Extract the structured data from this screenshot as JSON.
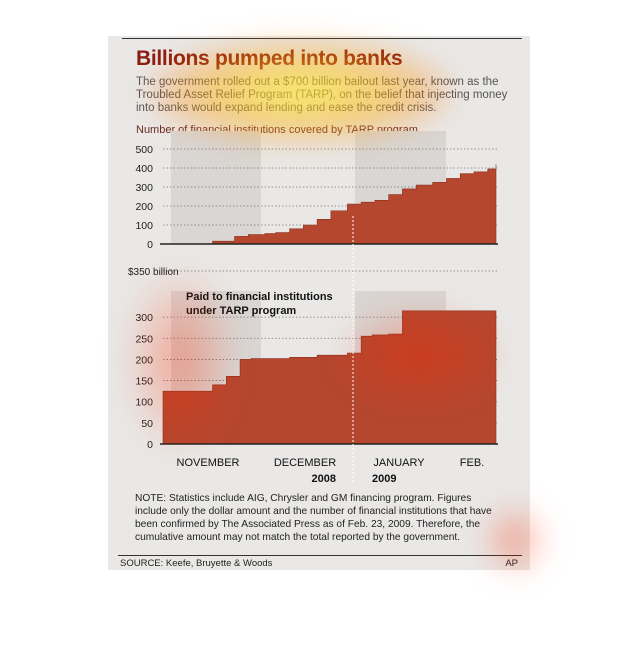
{
  "header": {
    "title": "Billions pumped into banks",
    "intro": "The government rolled out a $700 billion bailout last year, known as the Troubled Asset Relief Program (TARP), on the belief that injecting money into banks would expand lending and ease the credit crisis."
  },
  "footer": {
    "note": "NOTE: Statistics include AIG, Chrysler and GM financing program. Figures include only the dollar amount and the number of financial institutions that have been confirmed by The Associated Press as of Feb. 23, 2009. Therefore, the cumulative amount may not match the total reported by the government.",
    "source": "SOURCE: Keefe, Bruyette & Woods",
    "credit": "AP"
  },
  "colors": {
    "area": "#b5472f",
    "title": "#8a1c12",
    "band": "#d9d6d3",
    "background": "#e9e8e6"
  },
  "months": [
    "NOVEMBER",
    "DECEMBER",
    "JANUARY",
    "FEB."
  ],
  "years": [
    "2008",
    "2009"
  ],
  "chart_data": [
    {
      "type": "area",
      "title": "Number of financial institutions covered by TARP program",
      "ylim": [
        0,
        500
      ],
      "yticks": [
        0,
        100,
        200,
        300,
        400,
        500
      ],
      "x": [
        "Oct 25",
        "Nov 5",
        "Nov 12",
        "Nov 20",
        "Nov 25",
        "Dec 1",
        "Dec 5",
        "Dec 10",
        "Dec 15",
        "Dec 20",
        "Dec 25",
        "Dec 31",
        "Jan 5",
        "Jan 10",
        "Jan 15",
        "Jan 20",
        "Jan 25",
        "Jan 31",
        "Feb 5",
        "Feb 10",
        "Feb 15",
        "Feb 20",
        "Feb 23"
      ],
      "values": [
        0,
        0,
        15,
        40,
        50,
        55,
        60,
        80,
        100,
        130,
        175,
        210,
        220,
        230,
        260,
        290,
        310,
        325,
        345,
        370,
        380,
        395,
        420
      ],
      "grid": true
    },
    {
      "type": "area",
      "title": "Paid to financial institutions under TARP program",
      "ylabel_top": "$350 billion",
      "ylim": [
        0,
        350
      ],
      "yticks": [
        0,
        50,
        100,
        150,
        200,
        250,
        300
      ],
      "x": [
        "Oct 25",
        "Nov 5",
        "Nov 12",
        "Nov 17",
        "Nov 22",
        "Nov 26",
        "Dec 10",
        "Dec 20",
        "Dec 31",
        "Jan 5",
        "Jan 9",
        "Jan 15",
        "Jan 20",
        "Feb 23"
      ],
      "values": [
        125,
        125,
        140,
        160,
        200,
        202,
        205,
        210,
        215,
        255,
        258,
        260,
        315,
        315
      ],
      "grid": true
    }
  ]
}
